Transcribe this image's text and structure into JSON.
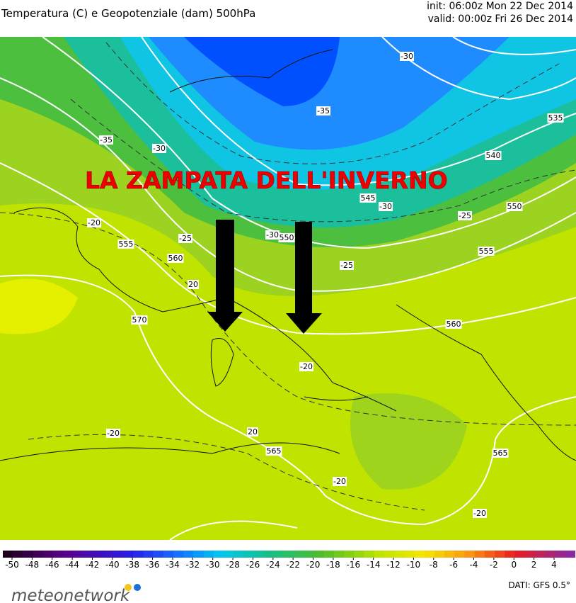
{
  "header": {
    "title": "Temperatura (C) e Geopotenziale (dam) 500hPa",
    "init": "init: 06:00z Mon 22 Dec 2014",
    "valid": "valid: 00:00z Fri 26 Dec 2014"
  },
  "map": {
    "headline": "LA ZAMPATA DELL'INVERNO",
    "labels": [
      "-30",
      "-35",
      "535",
      "540",
      "545",
      "550",
      "555",
      "560",
      "-30",
      "-25",
      "-25",
      "-20",
      "555",
      "560",
      "-25",
      "20",
      "570",
      "-20",
      "-20",
      "20",
      "565",
      "-20",
      "565",
      "-20",
      "-30",
      "-35",
      "-30",
      "550"
    ]
  },
  "colorbar": {
    "ticks": [
      -50,
      -48,
      -46,
      -44,
      -42,
      -40,
      -38,
      -36,
      -34,
      -32,
      -30,
      -28,
      -26,
      -24,
      -22,
      -20,
      -18,
      -16,
      -14,
      -12,
      -10,
      -8,
      -6,
      -4,
      -2,
      0,
      2,
      4
    ]
  },
  "footer": {
    "logo": "meteonetwork",
    "source": "DATI: GFS 0.5°"
  }
}
